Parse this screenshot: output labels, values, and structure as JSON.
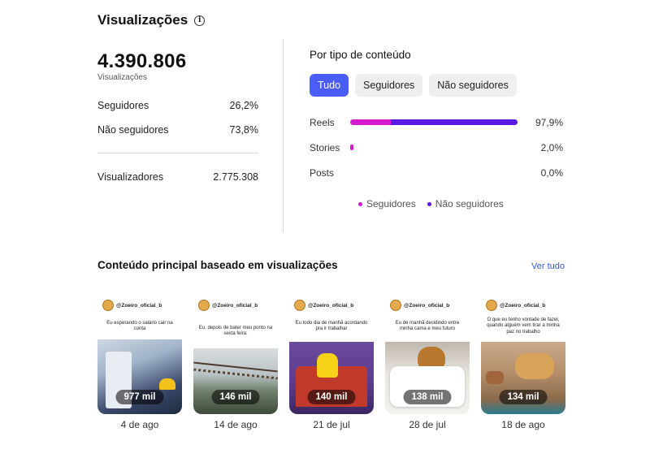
{
  "header": {
    "title": "Visualizações"
  },
  "summary": {
    "total": "4.390.806",
    "total_label": "Visualizações",
    "followers_label": "Seguidores",
    "followers_pct": "26,2%",
    "non_followers_label": "Não seguidores",
    "non_followers_pct": "73,8%",
    "viewers_label": "Visualizadores",
    "viewers_count": "2.775.308"
  },
  "by_type": {
    "title": "Por tipo de conteúdo",
    "filters": [
      "Tudo",
      "Seguidores",
      "Não seguidores"
    ],
    "active_filter": "Tudo",
    "rows": [
      {
        "label": "Reels",
        "value": "97,9%",
        "followers_pct": 24,
        "non_followers_pct": 73.9
      },
      {
        "label": "Stories",
        "value": "2,0%",
        "followers_pct": 2.0,
        "non_followers_pct": 0
      },
      {
        "label": "Posts",
        "value": "0,0%",
        "followers_pct": 0,
        "non_followers_pct": 0
      }
    ],
    "legend": [
      "Seguidores",
      "Não seguidores"
    ],
    "colors": {
      "followers": "#d61bcf",
      "non_followers": "#5a19e0",
      "active_chip": "#4a5df9"
    }
  },
  "top_content": {
    "title": "Conteúdo principal baseado em visualizações",
    "see_all": "Ver tudo",
    "items": [
      {
        "handle": "@Zoeiro_oficial_b",
        "caption": "Eu esperando o salário cair na conta",
        "views": "977 mil",
        "date": "4 de ago"
      },
      {
        "handle": "@Zoeiro_oficial_b",
        "caption": "Eu, depois de bater meu ponto na sexta feira:",
        "views": "146 mil",
        "date": "14 de ago"
      },
      {
        "handle": "@Zoeiro_oficial_b",
        "caption": "Eu todo dia de manhã acordando pra ir trabalhar",
        "views": "140 mil",
        "date": "21 de jul"
      },
      {
        "handle": "@Zoeiro_oficial_b",
        "caption": "Eu de manhã decidindo entre minha cama e meu futuro",
        "views": "138 mil",
        "date": "28 de jul"
      },
      {
        "handle": "@Zoeiro_oficial_b",
        "caption": "O que eu tenho vontade de fazer, quando alguém vem tirar a minha paz no trabalho",
        "views": "134 mil",
        "date": "18 de ago"
      }
    ]
  }
}
